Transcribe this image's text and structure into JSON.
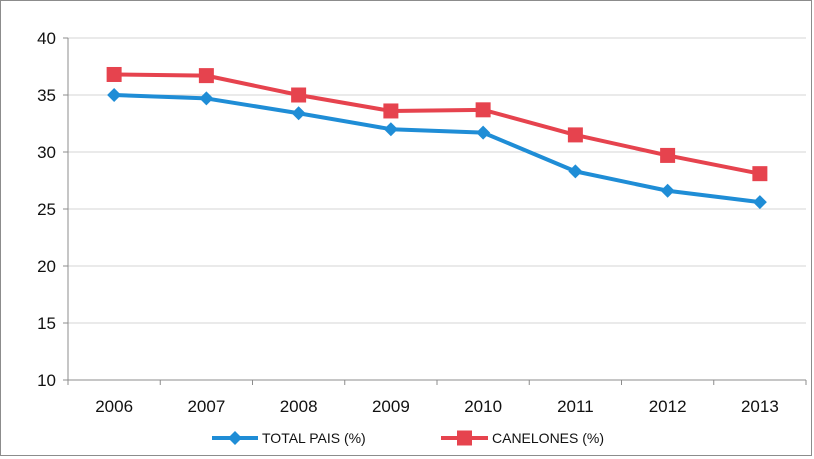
{
  "chart_data": {
    "type": "line",
    "title": "",
    "xlabel": "",
    "ylabel": "",
    "categories": [
      "2006",
      "2007",
      "2008",
      "2009",
      "2010",
      "2011",
      "2012",
      "2013"
    ],
    "ylim": [
      10,
      40
    ],
    "yticks": [
      "10",
      "15",
      "20",
      "25",
      "30",
      "35",
      "40"
    ],
    "grid": true,
    "legend_position": "bottom",
    "series": [
      {
        "name": "TOTAL PAIS  (%)",
        "color": "#1f8dd6",
        "marker": "diamond",
        "values": [
          35.0,
          34.7,
          33.4,
          32.0,
          31.7,
          28.3,
          26.6,
          25.6
        ]
      },
      {
        "name": "CANELONES  (%)",
        "color": "#e6434e",
        "marker": "square",
        "values": [
          36.8,
          36.7,
          35.0,
          33.6,
          33.7,
          31.5,
          29.7,
          28.1
        ]
      }
    ]
  }
}
